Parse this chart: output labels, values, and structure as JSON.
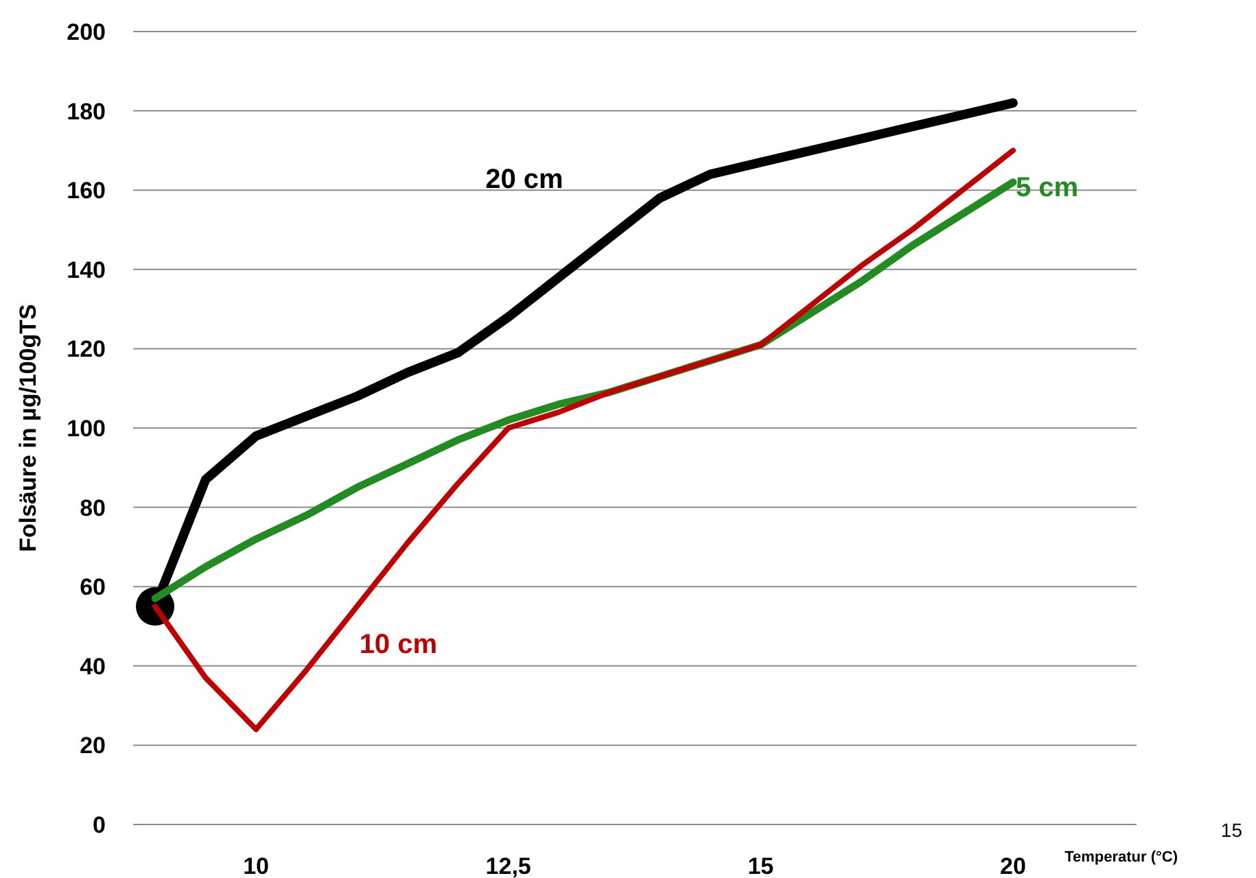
{
  "chart_data": {
    "type": "line",
    "xlabel": "Temperatur (°C)",
    "ylabel": "Folsäure in µg/100gTS",
    "categories": [
      null,
      null,
      "10",
      null,
      null,
      null,
      null,
      "12,5",
      null,
      null,
      null,
      null,
      "15",
      null,
      null,
      null,
      null,
      "20"
    ],
    "ylim": [
      0,
      200
    ],
    "yticks": [
      0,
      20,
      40,
      60,
      80,
      100,
      120,
      140,
      160,
      180,
      200
    ],
    "grid": "y",
    "marker": "none",
    "line_style": "solid",
    "annotations": [
      "15"
    ],
    "series": [
      {
        "name": "20 cm",
        "color": "#000000",
        "values": [
          55,
          87,
          98,
          103,
          108,
          114,
          119,
          128,
          138,
          148,
          158,
          164,
          167,
          170,
          173,
          176,
          179,
          182
        ]
      },
      {
        "name": "5 cm",
        "color": "#228b22",
        "values": [
          57,
          65,
          72,
          78,
          85,
          91,
          97,
          102,
          106,
          109,
          113,
          117,
          121,
          129,
          137,
          146,
          154,
          162
        ]
      },
      {
        "name": "10 cm",
        "color": "#c00000",
        "values": [
          55,
          37,
          24,
          39,
          55,
          71,
          86,
          100,
          104,
          109,
          113,
          117,
          121,
          131,
          141,
          150,
          160,
          170
        ]
      },
      {
        "type": "scatter",
        "color": "#000000",
        "marker": "circle",
        "values": [
          55,
          null,
          null,
          null,
          null,
          null,
          null,
          null,
          null,
          null,
          null,
          null,
          null,
          null,
          null,
          null,
          null,
          null
        ]
      }
    ]
  }
}
